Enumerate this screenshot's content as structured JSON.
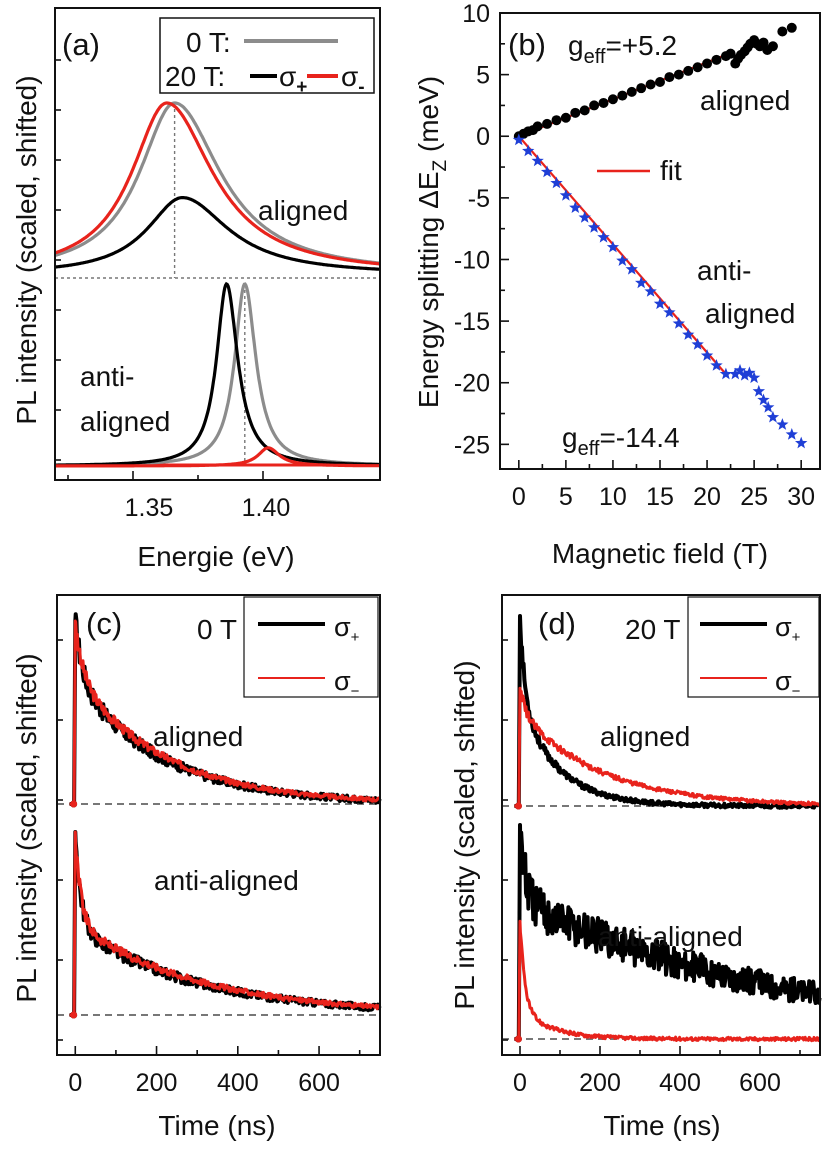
{
  "chart_data": [
    {
      "id": "a",
      "type": "line",
      "panel_label": "(a)",
      "xlabel": "Energie (eV)",
      "ylabel": "PL intensity (scaled, shifted)",
      "xlim": [
        1.32,
        1.445
      ],
      "xticks": [
        "1.35",
        "1.40"
      ],
      "xtick_values": [
        1.35,
        1.4
      ],
      "legend": {
        "row1_label": "0 T:",
        "row2_label": "20 T:",
        "sigma_plus": "σ+",
        "sigma_minus": "σ-"
      },
      "annotations": [
        "aligned",
        "anti-",
        "aligned"
      ],
      "series": [
        {
          "name": "0 T",
          "color": "#8c8c8c",
          "group": "aligned",
          "center": 1.366,
          "peak": 1.0,
          "hwhm_low": 0.0165,
          "hwhm_high": 0.0215
        },
        {
          "name": "σ+",
          "color": "#000000",
          "group": "aligned",
          "center": 1.369,
          "peak": 0.45,
          "hwhm_low": 0.0165,
          "hwhm_high": 0.0215
        },
        {
          "name": "σ-",
          "color": "#e8231c",
          "group": "aligned",
          "center": 1.363,
          "peak": 1.0,
          "hwhm_low": 0.0165,
          "hwhm_high": 0.0215
        },
        {
          "name": "0 T",
          "color": "#8c8c8c",
          "group": "anti-aligned",
          "center": 1.393,
          "peak": 1.0,
          "hwhm_low": 0.0047,
          "hwhm_high": 0.0052
        },
        {
          "name": "σ+",
          "color": "#000000",
          "group": "anti-aligned",
          "center": 1.386,
          "peak": 1.0,
          "hwhm_low": 0.0047,
          "hwhm_high": 0.0052
        },
        {
          "name": "σ-",
          "color": "#e8231c",
          "group": "anti-aligned",
          "center": 1.402,
          "peak": 0.1,
          "hwhm_low": 0.0047,
          "hwhm_high": 0.0052
        }
      ],
      "reference_energy_aligned": 1.366,
      "reference_energy_anti_aligned": 1.393
    },
    {
      "id": "b",
      "type": "scatter",
      "panel_label": "(b)",
      "xlabel": "Magnetic field (T)",
      "ylabel": "Energy splitting ΔE",
      "ylabel_sub": "Z",
      "ylabel_unit": " (meV)",
      "xlim": [
        -2,
        32
      ],
      "ylim": [
        -27,
        10
      ],
      "xticks": [
        0,
        5,
        10,
        15,
        20,
        25,
        30
      ],
      "yticks": [
        10,
        5,
        0,
        -5,
        -10,
        -15,
        -20,
        -25
      ],
      "annotations": {
        "g_aligned_main": "g",
        "g_aligned_sub": "eff",
        "g_aligned_value": "=+5.2",
        "label_aligned": "aligned",
        "fit_label": "fit",
        "label_anti_1": "anti-",
        "label_anti_2": "aligned",
        "g_anti_main": "g",
        "g_anti_sub": "eff",
        "g_anti_value": "=-14.4"
      },
      "series": [
        {
          "name": "aligned",
          "marker": "circle",
          "color": "#000000",
          "x": [
            0,
            0.5,
            1,
            1.5,
            2,
            3,
            4,
            5,
            6,
            7,
            8,
            9,
            10,
            11,
            12,
            13,
            14,
            15,
            16,
            17,
            18,
            19,
            20,
            21,
            22,
            22.5,
            23,
            23.3,
            23.6,
            24,
            24.3,
            24.6,
            25,
            25.3,
            25.6,
            26,
            26.4,
            27,
            28,
            29
          ],
          "y": [
            0,
            0.2,
            0.4,
            0.5,
            0.8,
            1.0,
            1.3,
            1.5,
            1.9,
            2.1,
            2.5,
            2.7,
            3.0,
            3.3,
            3.6,
            3.9,
            4.2,
            4.4,
            4.8,
            5.0,
            5.3,
            5.6,
            5.9,
            6.2,
            6.5,
            6.7,
            5.9,
            6.3,
            6.6,
            6.9,
            7.2,
            7.5,
            7.8,
            7.5,
            7.3,
            7.6,
            7.0,
            7.3,
            8.5,
            8.8
          ]
        },
        {
          "name": "anti-aligned",
          "marker": "star",
          "color": "#1f3fd6",
          "x": [
            0,
            1,
            2,
            3,
            4,
            5,
            6,
            7,
            8,
            9,
            10,
            11,
            12,
            13,
            14,
            15,
            16,
            17,
            18,
            19,
            20,
            21,
            22,
            23,
            23.5,
            24,
            24.5,
            25,
            25.5,
            26,
            26.5,
            27,
            28,
            29,
            30
          ],
          "y": [
            -0.3,
            -1.2,
            -2.0,
            -2.9,
            -3.8,
            -4.8,
            -5.8,
            -6.6,
            -7.4,
            -8.2,
            -9.0,
            -10.1,
            -10.8,
            -11.9,
            -12.6,
            -13.6,
            -14.3,
            -15.2,
            -16.1,
            -16.9,
            -17.8,
            -18.6,
            -19.3,
            -19.3,
            -19.0,
            -19.4,
            -19.2,
            -19.6,
            -20.7,
            -21.4,
            -22.0,
            -22.8,
            -23.4,
            -24.2,
            -24.9
          ]
        }
      ],
      "fits": [
        {
          "name": "fit aligned",
          "color": "#e8231c",
          "x": [
            0,
            22
          ],
          "y": [
            0,
            6.6
          ]
        },
        {
          "name": "fit anti-aligned",
          "color": "#e8231c",
          "x": [
            0,
            22
          ],
          "y": [
            0,
            -19.3
          ]
        }
      ],
      "fit_legend_color": "#e8231c"
    },
    {
      "id": "c",
      "type": "line",
      "panel_label": "(c)",
      "field_label": "0 T",
      "xlabel": "Time (ns)",
      "ylabel": "PL intensity (scaled, shifted)",
      "xlim": [
        -45,
        750
      ],
      "xticks": [
        0,
        200,
        400,
        600
      ],
      "legend": {
        "sigma_plus": "σ+",
        "sigma_minus": "σ−"
      },
      "annotations": [
        "aligned",
        "anti-aligned"
      ],
      "series": [
        {
          "name": "σ+",
          "color": "#000000",
          "group": "aligned",
          "peak": 1.0,
          "a1": 0.32,
          "tau1": 18,
          "a2": 0.68,
          "tau2": 215,
          "noise": 0.015,
          "width": 4
        },
        {
          "name": "σ−",
          "color": "#e8231c",
          "group": "aligned",
          "peak": 1.0,
          "a1": 0.3,
          "tau1": 18,
          "a2": 0.7,
          "tau2": 220,
          "noise": 0.01,
          "width": 3
        },
        {
          "name": "σ+",
          "color": "#000000",
          "group": "anti-aligned",
          "peak": 1.0,
          "a1": 0.52,
          "tau1": 14,
          "a2": 0.48,
          "tau2": 300,
          "noise": 0.015,
          "width": 4
        },
        {
          "name": "σ−",
          "color": "#e8231c",
          "group": "anti-aligned",
          "peak": 1.0,
          "a1": 0.5,
          "tau1": 14,
          "a2": 0.5,
          "tau2": 305,
          "noise": 0.01,
          "width": 3
        }
      ]
    },
    {
      "id": "d",
      "type": "line",
      "panel_label": "(d)",
      "field_label": "20 T",
      "xlabel": "Time (ns)",
      "ylabel": "PL intensity (scaled, shifted)",
      "xlim": [
        -45,
        750
      ],
      "xticks": [
        0,
        200,
        400,
        600
      ],
      "legend": {
        "sigma_plus": "σ+",
        "sigma_minus": "σ−"
      },
      "annotations": [
        "aligned",
        "anti-aligned"
      ],
      "series": [
        {
          "name": "σ+",
          "color": "#000000",
          "group": "aligned",
          "peak": 1.0,
          "a1": 0.45,
          "tau1": 12,
          "a2": 0.55,
          "tau2": 95,
          "noise": 0.01,
          "width": 4
        },
        {
          "name": "σ−",
          "color": "#e8231c",
          "group": "aligned",
          "peak": 0.62,
          "a1": 0.2,
          "tau1": 14,
          "a2": 0.8,
          "tau2": 200,
          "noise": 0.008,
          "width": 3
        },
        {
          "name": "σ+",
          "color": "#000000",
          "group": "anti-aligned",
          "peak": 1.0,
          "a1": 0.35,
          "tau1": 13,
          "a2": 0.65,
          "tau2": 660,
          "noise": 0.03,
          "width": 4
        },
        {
          "name": "σ−",
          "color": "#e8231c",
          "group": "anti-aligned",
          "peak": 0.55,
          "a1": 0.75,
          "tau1": 12,
          "a2": 0.25,
          "tau2": 80,
          "noise": 0.008,
          "width": 3
        }
      ]
    }
  ]
}
